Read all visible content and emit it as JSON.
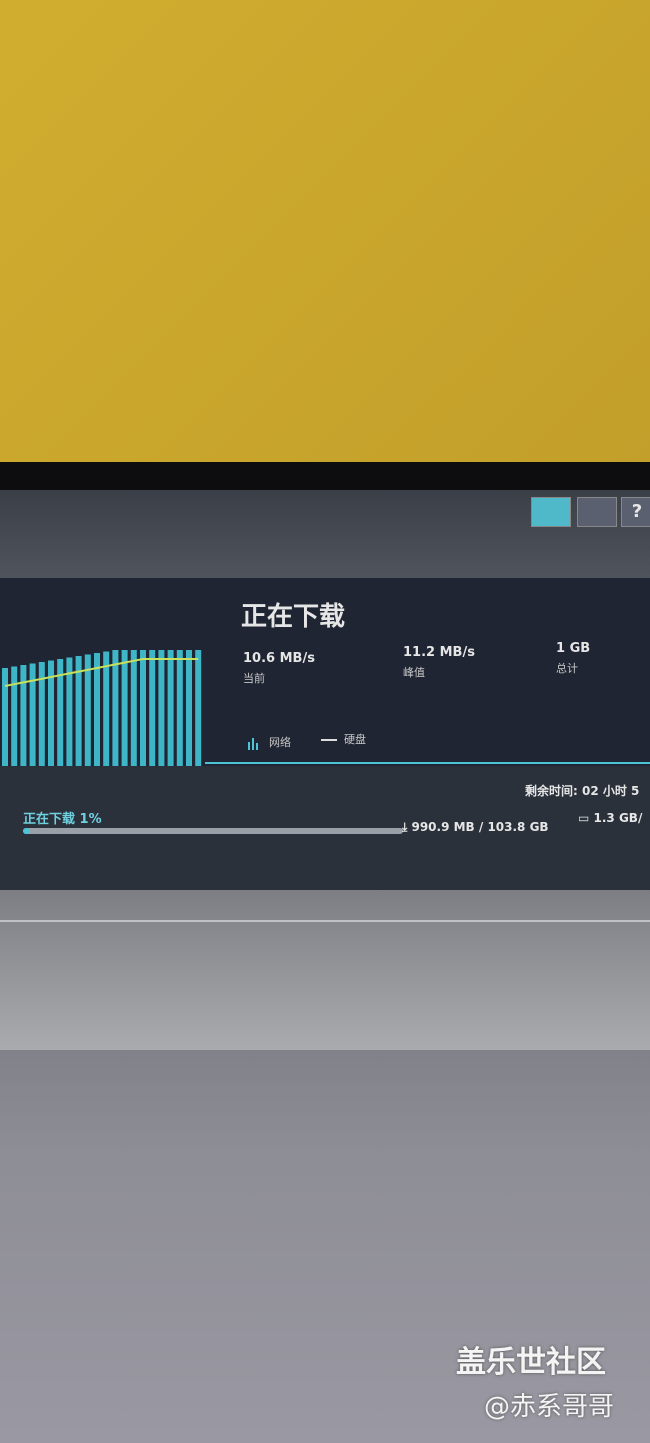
{
  "header": {
    "title": "正在下载",
    "help_icon": "?"
  },
  "stats": [
    {
      "value": "10.6 MB/s",
      "label": "当前"
    },
    {
      "value": "11.2 MB/s",
      "label": "峰值"
    },
    {
      "value": "1 GB",
      "label": "总计"
    }
  ],
  "legend": [
    "网络",
    "硬盘"
  ],
  "progress": {
    "remaining": "剩余时间: 02 小时 5",
    "status": "正在下载 1%",
    "downloaded": "990.9 MB / 103.8 GB",
    "disk": "1.3 GB/"
  },
  "watermark": {
    "brand": "盖乐世社区",
    "author": "@赤系哥哥"
  }
}
